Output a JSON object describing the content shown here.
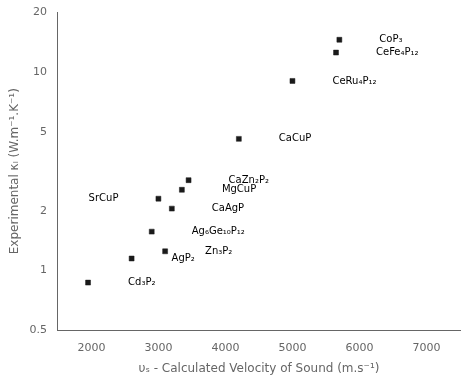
{
  "chart_data": {
    "type": "scatter",
    "x": [
      1950,
      2600,
      2900,
      3000,
      3100,
      3200,
      3350,
      3450,
      4200,
      5000,
      5650,
      5700
    ],
    "values": [
      0.87,
      1.15,
      1.57,
      2.3,
      1.25,
      2.05,
      2.55,
      2.85,
      4.6,
      9.0,
      12.5,
      14.5
    ],
    "annotations": [
      {
        "text": "Cd₃P₂",
        "x": 1950,
        "y": 0.87,
        "align": "left"
      },
      {
        "text": "AgP₂",
        "x": 2600,
        "y": 1.15,
        "align": "left"
      },
      {
        "text": "Ag₆Ge₁₀P₁₂",
        "x": 2900,
        "y": 1.57,
        "align": "left"
      },
      {
        "text": "SrCuP",
        "x": 3000,
        "y": 2.3,
        "align": "right"
      },
      {
        "text": "Zn₃P₂",
        "x": 3100,
        "y": 1.25,
        "align": "left"
      },
      {
        "text": "CaAgP",
        "x": 3200,
        "y": 2.05,
        "align": "left"
      },
      {
        "text": "MgCuP",
        "x": 3350,
        "y": 2.55,
        "align": "left"
      },
      {
        "text": "CaZn₂P₂",
        "x": 3450,
        "y": 2.85,
        "align": "left"
      },
      {
        "text": "CaCuP",
        "x": 4200,
        "y": 4.6,
        "align": "left"
      },
      {
        "text": "CeRu₄P₁₂",
        "x": 5000,
        "y": 9.0,
        "align": "left"
      },
      {
        "text": "CeFe₄P₁₂",
        "x": 5650,
        "y": 12.5,
        "align": "left"
      },
      {
        "text": "CoP₃",
        "x": 5700,
        "y": 14.5,
        "align": "left"
      }
    ],
    "xlabel": "υₛ - Calculated Velocity of Sound (m.s⁻¹)",
    "ylabel": "Experimental κₗ (W.m⁻¹.K⁻¹)",
    "xlim": [
      1500,
      7500
    ],
    "ylim": [
      0.5,
      20
    ],
    "xticks": [
      2000,
      3000,
      4000,
      5000,
      6000,
      7000
    ],
    "yticks": [
      0.5,
      1,
      2,
      5,
      10,
      20
    ],
    "log": "y",
    "grid": false,
    "marker": "square",
    "color": "#1a1a1a"
  }
}
